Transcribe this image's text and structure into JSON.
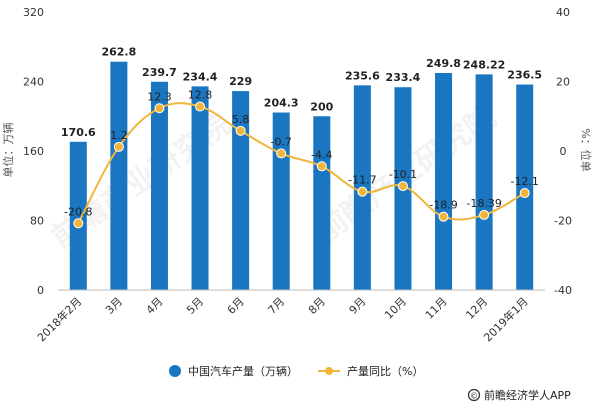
{
  "chart_data": {
    "type": "bar",
    "categories": [
      "2018年2月",
      "3月",
      "4月",
      "5月",
      "6月",
      "7月",
      "8月",
      "9月",
      "10月",
      "11月",
      "12月",
      "2019年1月"
    ],
    "series": [
      {
        "name": "中国汽车产量（万辆）",
        "type": "bar",
        "axis": "left",
        "values": [
          170.6,
          262.8,
          239.7,
          234.4,
          229,
          204.3,
          200,
          235.6,
          233.4,
          249.8,
          248.22,
          236.5
        ],
        "labels": [
          "170.6",
          "262.8",
          "239.7",
          "234.4",
          "229",
          "204.3",
          "200",
          "235.6",
          "233.4",
          "249.8",
          "248.22",
          "236.5"
        ],
        "color": "#1a76c0"
      },
      {
        "name": "产量同比（%）",
        "type": "line",
        "axis": "right",
        "values": [
          -20.8,
          1.2,
          12.3,
          12.8,
          5.8,
          -0.7,
          -4.4,
          -11.7,
          -10.1,
          -18.9,
          -18.39,
          -12.1
        ],
        "labels": [
          "-20.8",
          "1.2",
          "12.3",
          "12.8",
          "5.8",
          "-0.7",
          "-4.4",
          "-11.7",
          "-10.1",
          "-18.9",
          "-18.39",
          "-12.1"
        ],
        "color": "#f0b63c"
      }
    ],
    "ylabel": "单位：万辆",
    "y2label": "%：位单",
    "ylim": [
      0,
      320
    ],
    "y2lim": [
      -40,
      40
    ],
    "yticks": [
      "0",
      "80",
      "160",
      "240",
      "320"
    ],
    "y2ticks": [
      "-40",
      "-20",
      "0",
      "20",
      "40"
    ],
    "grid": false,
    "legend": "bottom"
  },
  "source": "前瞻经济学人APP",
  "watermark": "前瞻产业研究院"
}
